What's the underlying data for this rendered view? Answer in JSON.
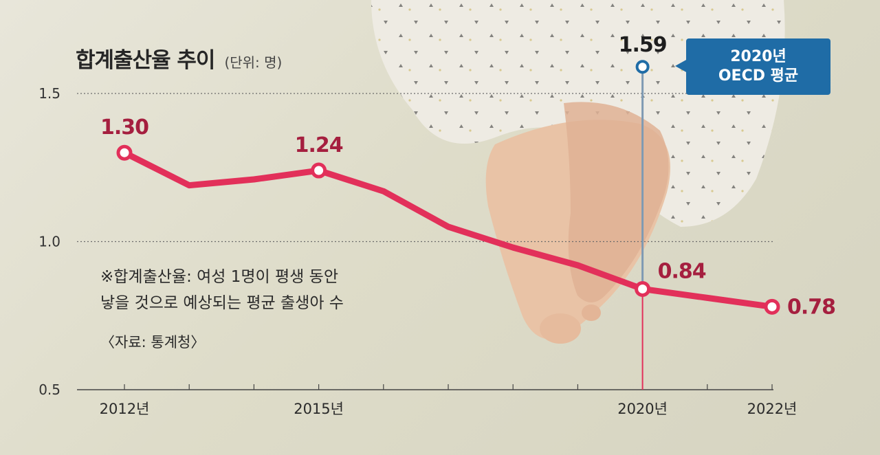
{
  "title": "합계출산율 추이",
  "unit": "(단위: 명)",
  "note_line1": "※합계출산율: 여성 1명이 평생 동안",
  "note_line2": "낳을 것으로 예상되는 평균 출생아 수",
  "source": "〈자료: 통계청〉",
  "oecd_box_line1": "2020년",
  "oecd_box_line2": "OECD 평균",
  "colors": {
    "line": "#e2305a",
    "label": "#a51f3f",
    "oecd": "#1f6ca6",
    "oecd_line": "#7f9ab3"
  },
  "chart_data": {
    "type": "line",
    "title": "합계출산율 추이",
    "ylabel": "(단위: 명)",
    "ylim": [
      0.5,
      1.5
    ],
    "yticks": [
      1.5,
      1.0,
      0.5
    ],
    "grid": true,
    "x": [
      2012,
      2013,
      2014,
      2015,
      2016,
      2017,
      2018,
      2019,
      2020,
      2021,
      2022
    ],
    "x_tick_labels": [
      "2012년",
      "2015년",
      "2020년",
      "2022년"
    ],
    "x_tick_years": [
      2012,
      2015,
      2020,
      2022
    ],
    "series": [
      {
        "values": [
          1.3,
          1.19,
          1.21,
          1.24,
          1.17,
          1.05,
          0.98,
          0.92,
          0.84,
          0.81,
          0.78
        ],
        "labeled_years": [
          2012,
          2015,
          2020,
          2022
        ],
        "labels": [
          "1.30",
          "1.24",
          "0.84",
          "0.78"
        ]
      }
    ],
    "reference": {
      "year": 2020,
      "value": 1.59,
      "label": "1.59",
      "name": "2020년 OECD 평균"
    }
  }
}
